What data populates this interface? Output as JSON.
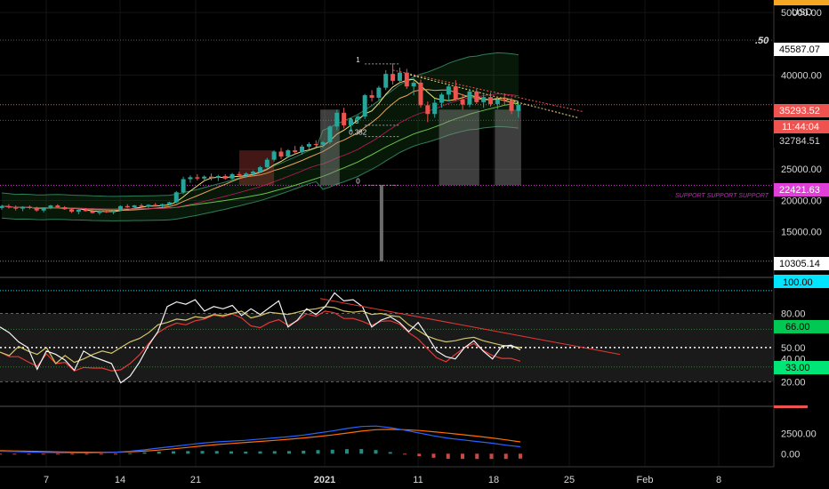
{
  "header": {
    "currency": "USD",
    "fraction_label": ".50"
  },
  "colors": {
    "background": "#000000",
    "up_candle": "#26a69a",
    "down_candle": "#ef5350",
    "price_tag": "#ef5350",
    "support_tag": "#e040d8",
    "overbought_tag": "#00e5ff",
    "rsi_high_tag": "#00c853",
    "rsi_low_tag": "#00e676",
    "macd_line": "#2962ff",
    "signal_line": "#ff6d00"
  },
  "chart_data": [
    {
      "panel": "price",
      "type": "candlestick",
      "x_tick_labels": [
        "7",
        "14",
        "21",
        "2021",
        "11",
        "18",
        "25",
        "Feb",
        "8"
      ],
      "y_tick_labels": [
        "50000.00",
        "40000.00",
        "25000.00",
        "20000.00",
        "15000.00"
      ],
      "y_range": [
        8000,
        52000
      ],
      "tags": {
        "top": "45587.07",
        "current_price": "35293.52",
        "countdown": "11:44:04",
        "level_1": "32784.51",
        "support": "22421.63",
        "low": "10305.14"
      },
      "support_label": "SUPPORT SUPPORT SUPPORT",
      "fib_levels": [
        {
          "label": "1",
          "value": 41800
        },
        {
          "label": "0.5",
          "value": 32000
        },
        {
          "label": "0.382",
          "value": 30200
        },
        {
          "label": "0",
          "value": 22421.63
        }
      ],
      "candles": [
        [
          18800,
          19300,
          18500,
          19100
        ],
        [
          19100,
          19400,
          18700,
          18900
        ],
        [
          18900,
          19200,
          18400,
          18700
        ],
        [
          18700,
          19100,
          18300,
          19000
        ],
        [
          19000,
          19200,
          18600,
          18800
        ],
        [
          18800,
          19000,
          18200,
          18400
        ],
        [
          18400,
          18900,
          18100,
          18800
        ],
        [
          18800,
          19300,
          18600,
          19200
        ],
        [
          19200,
          19400,
          18800,
          18900
        ],
        [
          18900,
          19100,
          18500,
          18600
        ],
        [
          18600,
          18800,
          18000,
          18200
        ],
        [
          18200,
          18600,
          17800,
          18500
        ],
        [
          18500,
          18800,
          18200,
          18300
        ],
        [
          18300,
          18700,
          17900,
          18000
        ],
        [
          18000,
          18400,
          17700,
          18300
        ],
        [
          18300,
          18600,
          18000,
          18100
        ],
        [
          18100,
          18500,
          17800,
          18400
        ],
        [
          18400,
          19200,
          18300,
          19100
        ],
        [
          19100,
          19400,
          18800,
          18900
        ],
        [
          18900,
          19300,
          18700,
          19200
        ],
        [
          19200,
          19500,
          18900,
          19000
        ],
        [
          19000,
          19400,
          18800,
          19300
        ],
        [
          19300,
          19600,
          19000,
          19100
        ],
        [
          19100,
          19500,
          18900,
          19400
        ],
        [
          19400,
          19800,
          19200,
          19700
        ],
        [
          19700,
          21500,
          19600,
          21300
        ],
        [
          21300,
          23800,
          21000,
          23400
        ],
        [
          23400,
          24000,
          22800,
          23700
        ],
        [
          23700,
          24200,
          23200,
          23500
        ],
        [
          23500,
          24000,
          23000,
          23800
        ],
        [
          23800,
          24300,
          23200,
          23600
        ],
        [
          23600,
          24100,
          23100,
          23900
        ],
        [
          23900,
          24200,
          23300,
          23500
        ],
        [
          23500,
          24400,
          23300,
          24200
        ],
        [
          24200,
          24600,
          23800,
          24000
        ],
        [
          24000,
          24500,
          23600,
          24300
        ],
        [
          24300,
          24800,
          23900,
          24600
        ],
        [
          24600,
          25500,
          24400,
          25300
        ],
        [
          25300,
          26800,
          25000,
          26500
        ],
        [
          26500,
          28000,
          26200,
          27800
        ],
        [
          27800,
          28400,
          26600,
          27000
        ],
        [
          27000,
          28200,
          26800,
          28000
        ],
        [
          28000,
          28700,
          27400,
          27700
        ],
        [
          27700,
          28900,
          27300,
          28600
        ],
        [
          28600,
          29300,
          28100,
          29000
        ],
        [
          29000,
          29600,
          28500,
          28900
        ],
        [
          28900,
          29500,
          28400,
          29300
        ],
        [
          29300,
          32000,
          29000,
          31800
        ],
        [
          31800,
          34500,
          31200,
          34000
        ],
        [
          34000,
          34800,
          31500,
          32000
        ],
        [
          32000,
          33200,
          31000,
          32900
        ],
        [
          32900,
          33600,
          32300,
          33400
        ],
        [
          33400,
          37000,
          33000,
          36800
        ],
        [
          36800,
          37600,
          35800,
          36400
        ],
        [
          36400,
          38300,
          36000,
          38000
        ],
        [
          38000,
          40800,
          37600,
          40200
        ],
        [
          40200,
          41900,
          38500,
          39100
        ],
        [
          39100,
          41200,
          38800,
          40400
        ],
        [
          40400,
          41000,
          37800,
          38200
        ],
        [
          38200,
          39500,
          36800,
          38800
        ],
        [
          38800,
          39300,
          34800,
          35200
        ],
        [
          35200,
          35800,
          32500,
          33800
        ],
        [
          33800,
          36200,
          33200,
          35600
        ],
        [
          35600,
          37200,
          34800,
          36900
        ],
        [
          36900,
          38500,
          35800,
          38200
        ],
        [
          38200,
          39200,
          35900,
          36100
        ],
        [
          36100,
          37000,
          34500,
          35300
        ],
        [
          35300,
          37800,
          34900,
          37400
        ],
        [
          37400,
          37800,
          35400,
          35700
        ],
        [
          35700,
          36900,
          34800,
          36500
        ],
        [
          36500,
          37200,
          35000,
          35400
        ],
        [
          35400,
          36600,
          34600,
          36100
        ],
        [
          36100,
          37100,
          35200,
          35900
        ],
        [
          35900,
          36400,
          33800,
          34300
        ],
        [
          34300,
          35700,
          33200,
          35293.52
        ]
      ]
    },
    {
      "panel": "oscillator",
      "type": "line",
      "y_tick_labels": [
        "80.00",
        "50.00",
        "40.00",
        "20.00"
      ],
      "y_range": [
        0,
        110
      ],
      "tags": {
        "top": "100.00",
        "high": "66.00",
        "low": "33.00"
      },
      "series": [
        {
          "values": [
            62,
            57,
            49,
            44,
            39,
            55,
            52,
            47,
            38,
            41,
            36,
            33,
            30,
            27,
            33,
            45,
            60,
            72,
            80,
            84,
            82,
            86,
            90,
            94,
            92,
            95,
            86,
            78,
            73,
            79,
            85,
            76,
            82,
            92,
            87,
            94,
            92,
            85,
            86,
            80,
            76,
            82,
            85,
            80,
            72,
            66,
            54,
            41,
            36,
            48,
            58,
            64,
            55,
            48,
            45,
            46,
            42
          ]
        },
        {
          "values": [
            46,
            43,
            51,
            47,
            44,
            50,
            36,
            43,
            37,
            40,
            44,
            47,
            45,
            50,
            55,
            58,
            63,
            70,
            72,
            75,
            74,
            77,
            76,
            79,
            78,
            80,
            82,
            76,
            78,
            81,
            80,
            79,
            81,
            83,
            84,
            86,
            85,
            82,
            81,
            82,
            79,
            80,
            78,
            77,
            70,
            65,
            60,
            57,
            55,
            56,
            58,
            59,
            56,
            54,
            52,
            51,
            50
          ]
        }
      ]
    },
    {
      "panel": "macd",
      "type": "bar",
      "y_tick_labels": [
        "2500.00",
        "0.00"
      ],
      "y_range": [
        -1500,
        5500
      ],
      "series": [
        {
          "name": "macd",
          "values": [
            300,
            260,
            210,
            160,
            130,
            110,
            100,
            120,
            180,
            300,
            480,
            700,
            900,
            1100,
            1300,
            1450,
            1550,
            1650,
            1800,
            1950,
            2100,
            2300,
            2550,
            2800,
            3100,
            3350,
            3400,
            3200,
            2900,
            2550,
            2200,
            1900,
            1700,
            1500,
            1300,
            1050,
            850
          ]
        },
        {
          "name": "signal",
          "values": [
            380,
            340,
            300,
            260,
            230,
            200,
            180,
            170,
            185,
            230,
            320,
            450,
            600,
            780,
            960,
            1120,
            1260,
            1390,
            1510,
            1640,
            1780,
            1930,
            2110,
            2310,
            2540,
            2780,
            2950,
            3000,
            2950,
            2850,
            2700,
            2520,
            2340,
            2150,
            1950,
            1700,
            1450
          ]
        },
        {
          "name": "histogram",
          "values": [
            -80,
            -80,
            -90,
            -100,
            -100,
            -90,
            -80,
            -50,
            -5,
            70,
            160,
            250,
            300,
            320,
            340,
            330,
            290,
            260,
            290,
            310,
            320,
            370,
            440,
            490,
            560,
            570,
            450,
            200,
            -50,
            -300,
            -500,
            -620,
            -640,
            -650,
            -650,
            -650,
            -600
          ]
        }
      ]
    }
  ]
}
